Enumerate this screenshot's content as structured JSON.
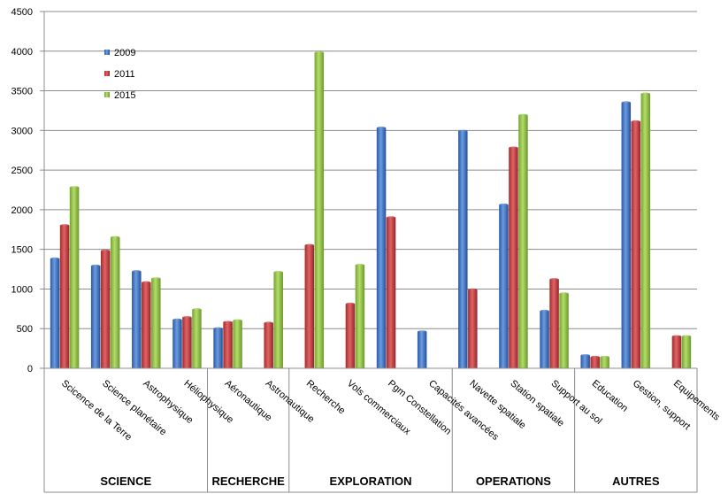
{
  "chart_data": {
    "type": "bar",
    "title": "",
    "xlabel": "",
    "ylabel": "",
    "ylim": [
      0,
      4500
    ],
    "yticks": [
      0,
      500,
      1000,
      1500,
      2000,
      2500,
      3000,
      3500,
      4000,
      4500
    ],
    "grid": true,
    "legend_position": "top-left",
    "categories": [
      "Scicence de la Terre",
      "Science planétaire",
      "Astrophysique",
      "Héliophysique",
      "Aéronautique",
      "Astronautique",
      "Recherche",
      "Vols commerciaux",
      "Pgm Constellation",
      "Capacités avancées",
      "Navette spatiale",
      "Station spatiale",
      "Support au sol",
      "Education",
      "Gestion, support",
      "Equipements"
    ],
    "series": [
      {
        "name": "2009",
        "color": "#3a6fc4",
        "values": [
          1380,
          1290,
          1220,
          610,
          500,
          null,
          null,
          null,
          3030,
          460,
          2990,
          2060,
          720,
          160,
          3350,
          null
        ]
      },
      {
        "name": "2011",
        "color": "#c0393b",
        "values": [
          1800,
          1480,
          1080,
          640,
          580,
          570,
          1550,
          810,
          1900,
          null,
          990,
          2780,
          1120,
          140,
          3110,
          400
        ]
      },
      {
        "name": "2015",
        "color": "#8cbf3f",
        "values": [
          2280,
          1650,
          1130,
          740,
          600,
          1210,
          3980,
          1300,
          null,
          null,
          null,
          3190,
          940,
          140,
          3460,
          400
        ]
      }
    ],
    "groups": [
      {
        "label": "SCIENCE",
        "start": 0,
        "end": 3
      },
      {
        "label": "RECHERCHE",
        "start": 4,
        "end": 5
      },
      {
        "label": "EXPLORATION",
        "start": 6,
        "end": 9
      },
      {
        "label": "OPERATIONS",
        "start": 10,
        "end": 12
      },
      {
        "label": "AUTRES",
        "start": 13,
        "end": 15
      }
    ]
  }
}
